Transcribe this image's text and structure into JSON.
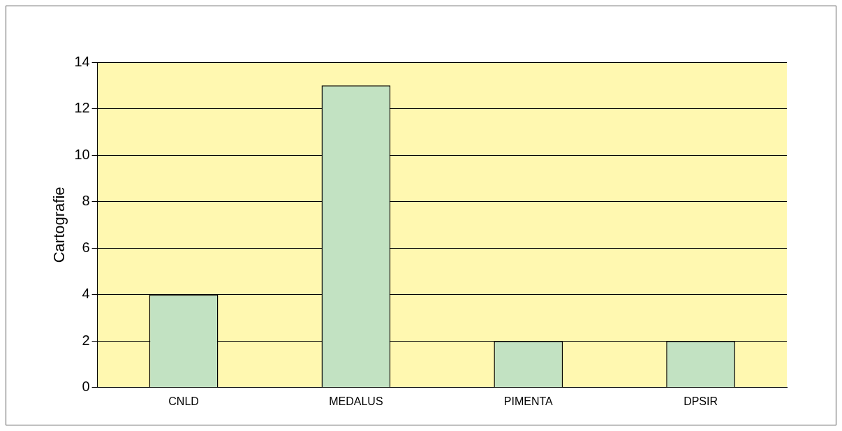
{
  "chart_data": {
    "type": "bar",
    "ylabel": "Cartografie",
    "categories": [
      "CNLD",
      "MEDALUS",
      "PIMENTA",
      "DPSIR"
    ],
    "values": [
      4,
      13,
      2,
      2
    ],
    "color": "#c2e2c2",
    "ylim": [
      0,
      14
    ],
    "yticks": [
      0,
      2,
      4,
      6,
      8,
      10,
      12,
      14
    ],
    "grid": "y",
    "legend": false
  }
}
